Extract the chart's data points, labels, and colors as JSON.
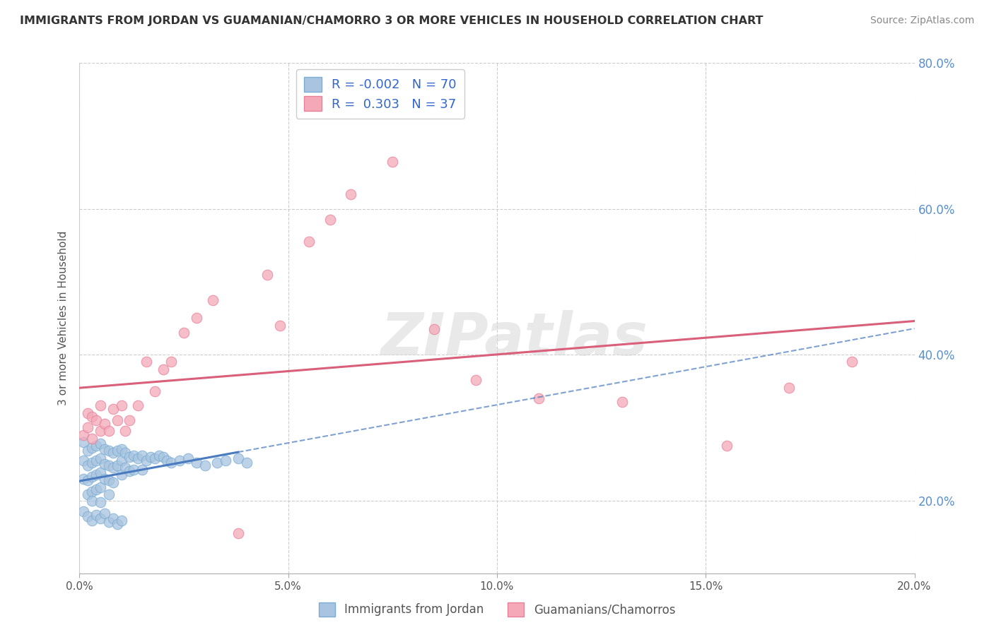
{
  "title": "IMMIGRANTS FROM JORDAN VS GUAMANIAN/CHAMORRO 3 OR MORE VEHICLES IN HOUSEHOLD CORRELATION CHART",
  "source": "Source: ZipAtlas.com",
  "ylabel": "3 or more Vehicles in Household",
  "xlabel_jordan": "Immigrants from Jordan",
  "xlabel_chamorro": "Guamanians/Chamorros",
  "r_jordan": -0.002,
  "n_jordan": 70,
  "r_chamorro": 0.303,
  "n_chamorro": 37,
  "xlim": [
    0.0,
    0.2
  ],
  "ylim": [
    0.1,
    0.8
  ],
  "xticks": [
    0.0,
    0.05,
    0.1,
    0.15,
    0.2
  ],
  "yticks": [
    0.2,
    0.4,
    0.6,
    0.8
  ],
  "color_jordan": "#a8c4e0",
  "color_chamorro": "#f4a8b8",
  "border_jordan": "#7aadd4",
  "border_chamorro": "#e8809a",
  "line_color_jordan": "#4a7bbf",
  "line_color_chamorro": "#d95f7a",
  "watermark": "ZIPatlas",
  "jordan_x": [
    0.001,
    0.001,
    0.001,
    0.002,
    0.002,
    0.002,
    0.002,
    0.003,
    0.003,
    0.003,
    0.003,
    0.003,
    0.004,
    0.004,
    0.004,
    0.004,
    0.005,
    0.005,
    0.005,
    0.005,
    0.005,
    0.006,
    0.006,
    0.006,
    0.007,
    0.007,
    0.007,
    0.007,
    0.008,
    0.008,
    0.008,
    0.009,
    0.009,
    0.01,
    0.01,
    0.01,
    0.011,
    0.011,
    0.012,
    0.012,
    0.013,
    0.013,
    0.014,
    0.015,
    0.015,
    0.016,
    0.017,
    0.018,
    0.019,
    0.02,
    0.021,
    0.022,
    0.024,
    0.026,
    0.028,
    0.03,
    0.033,
    0.035,
    0.038,
    0.04,
    0.001,
    0.002,
    0.003,
    0.004,
    0.005,
    0.006,
    0.007,
    0.008,
    0.009,
    0.01
  ],
  "jordan_y": [
    0.28,
    0.255,
    0.23,
    0.268,
    0.248,
    0.228,
    0.208,
    0.272,
    0.252,
    0.232,
    0.212,
    0.2,
    0.275,
    0.255,
    0.235,
    0.215,
    0.278,
    0.258,
    0.238,
    0.218,
    0.198,
    0.27,
    0.25,
    0.23,
    0.268,
    0.248,
    0.228,
    0.208,
    0.265,
    0.245,
    0.225,
    0.268,
    0.248,
    0.27,
    0.255,
    0.235,
    0.265,
    0.245,
    0.26,
    0.24,
    0.262,
    0.242,
    0.258,
    0.262,
    0.242,
    0.255,
    0.26,
    0.258,
    0.262,
    0.26,
    0.255,
    0.252,
    0.255,
    0.258,
    0.252,
    0.248,
    0.252,
    0.255,
    0.258,
    0.252,
    0.185,
    0.178,
    0.172,
    0.18,
    0.175,
    0.182,
    0.17,
    0.175,
    0.168,
    0.172
  ],
  "chamorro_x": [
    0.001,
    0.002,
    0.002,
    0.003,
    0.003,
    0.004,
    0.005,
    0.005,
    0.006,
    0.007,
    0.008,
    0.009,
    0.01,
    0.011,
    0.012,
    0.014,
    0.016,
    0.018,
    0.02,
    0.022,
    0.025,
    0.028,
    0.032,
    0.038,
    0.048,
    0.055,
    0.065,
    0.075,
    0.085,
    0.095,
    0.11,
    0.13,
    0.155,
    0.17,
    0.185,
    0.045,
    0.06
  ],
  "chamorro_y": [
    0.29,
    0.3,
    0.32,
    0.285,
    0.315,
    0.31,
    0.295,
    0.33,
    0.305,
    0.295,
    0.325,
    0.31,
    0.33,
    0.295,
    0.31,
    0.33,
    0.39,
    0.35,
    0.38,
    0.39,
    0.43,
    0.45,
    0.475,
    0.155,
    0.44,
    0.555,
    0.62,
    0.665,
    0.435,
    0.365,
    0.34,
    0.335,
    0.275,
    0.355,
    0.39,
    0.51,
    0.585
  ],
  "jordan_line_x_end": 0.038,
  "chamorro_line_x_start": 0.0,
  "chamorro_line_x_end": 0.2
}
